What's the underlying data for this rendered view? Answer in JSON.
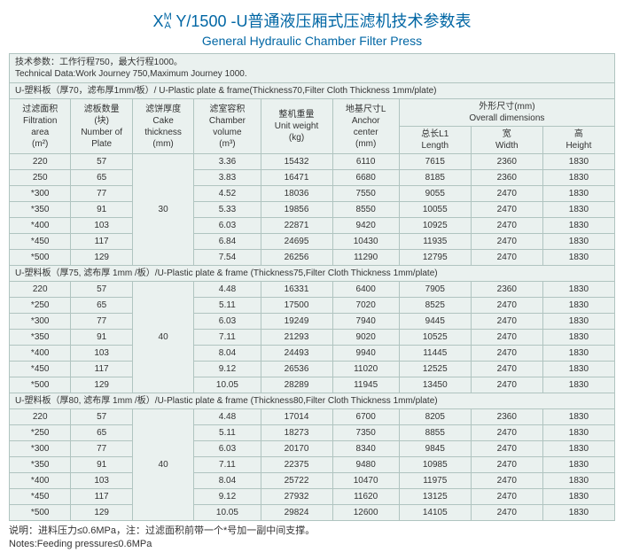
{
  "title": {
    "xs": "X",
    "stack_top": "M",
    "stack_bottom": "A",
    "rest": " Y/1500 -U普通液压厢式压滤机技术参数表"
  },
  "subtitle": "General Hydraulic Chamber Filter Press",
  "tech_data": {
    "cn": "技术参数：工作行程750，最大行程1000。",
    "en": "Technical Data:Work Journey 750,Maximum Journey 1000."
  },
  "section_headers": {
    "s70": "U-塑料板（厚70，滤布厚1mm/板）/ U-Plastic plate & frame(Thickness70,Filter Cloth Thickness 1mm/plate)",
    "s75": "U-塑料板（厚75,  滤布厚 1mm /板）/U-Plastic plate & frame (Thickness75,Filter Cloth Thickness 1mm/plate)",
    "s80": "U-塑料板（厚80,  滤布厚 1mm /板）/U-Plastic plate & frame (Thickness80,Filter Cloth Thickness 1mm/plate)"
  },
  "headers": {
    "area_cn": "过滤面积",
    "area_en": "Filtration area",
    "area_unit": "(m²)",
    "plates_cn": "滤板数量",
    "plates_mid": "(块)",
    "plates_en": "Number of",
    "plates_en2": "Plate",
    "cake_cn": "滤饼厚度",
    "cake_en": "Cake",
    "cake_en2": "thickness",
    "cake_unit": "(mm)",
    "vol_cn": "滤室容积",
    "vol_en": "Chamber",
    "vol_en2": "volume",
    "vol_unit": "(m³)",
    "weight_cn": "整机重量",
    "weight_en": "Unit weight",
    "weight_unit": "(kg)",
    "anchor_cn": "地基尺寸L",
    "anchor_en": "Anchor",
    "anchor_en2": "center",
    "anchor_unit": "(mm)",
    "dims_cn": "外形尺寸(mm)",
    "dims_en": "Overall dimensions",
    "len_cn": "总长L1",
    "len_en": "Length",
    "wid_cn": "宽",
    "wid_en": "Width",
    "hei_cn": "高",
    "hei_en": "Height"
  },
  "groups": [
    {
      "cake": "30",
      "rows": [
        [
          "220",
          "57",
          "3.36",
          "15432",
          "6110",
          "7615",
          "2360",
          "1830"
        ],
        [
          "250",
          "65",
          "3.83",
          "16471",
          "6680",
          "8185",
          "2360",
          "1830"
        ],
        [
          "*300",
          "77",
          "4.52",
          "18036",
          "7550",
          "9055",
          "2470",
          "1830"
        ],
        [
          "*350",
          "91",
          "5.33",
          "19856",
          "8550",
          "10055",
          "2470",
          "1830"
        ],
        [
          "*400",
          "103",
          "6.03",
          "22871",
          "9420",
          "10925",
          "2470",
          "1830"
        ],
        [
          "*450",
          "117",
          "6.84",
          "24695",
          "10430",
          "11935",
          "2470",
          "1830"
        ],
        [
          "*500",
          "129",
          "7.54",
          "26256",
          "11290",
          "12795",
          "2470",
          "1830"
        ]
      ]
    },
    {
      "cake": "40",
      "rows": [
        [
          "220",
          "57",
          "4.48",
          "16331",
          "6400",
          "7905",
          "2360",
          "1830"
        ],
        [
          "*250",
          "65",
          "5.11",
          "17500",
          "7020",
          "8525",
          "2470",
          "1830"
        ],
        [
          "*300",
          "77",
          "6.03",
          "19249",
          "7940",
          "9445",
          "2470",
          "1830"
        ],
        [
          "*350",
          "91",
          "7.11",
          "21293",
          "9020",
          "10525",
          "2470",
          "1830"
        ],
        [
          "*400",
          "103",
          "8.04",
          "24493",
          "9940",
          "11445",
          "2470",
          "1830"
        ],
        [
          "*450",
          "117",
          "9.12",
          "26536",
          "11020",
          "12525",
          "2470",
          "1830"
        ],
        [
          "*500",
          "129",
          "10.05",
          "28289",
          "11945",
          "13450",
          "2470",
          "1830"
        ]
      ]
    },
    {
      "cake": "40",
      "rows": [
        [
          "220",
          "57",
          "4.48",
          "17014",
          "6700",
          "8205",
          "2360",
          "1830"
        ],
        [
          "*250",
          "65",
          "5.11",
          "18273",
          "7350",
          "8855",
          "2470",
          "1830"
        ],
        [
          "*300",
          "77",
          "6.03",
          "20170",
          "8340",
          "9845",
          "2470",
          "1830"
        ],
        [
          "*350",
          "91",
          "7.11",
          "22375",
          "9480",
          "10985",
          "2470",
          "1830"
        ],
        [
          "*400",
          "103",
          "8.04",
          "25722",
          "10470",
          "11975",
          "2470",
          "1830"
        ],
        [
          "*450",
          "117",
          "9.12",
          "27932",
          "11620",
          "13125",
          "2470",
          "1830"
        ],
        [
          "*500",
          "129",
          "10.05",
          "29824",
          "12600",
          "14105",
          "2470",
          "1830"
        ]
      ]
    }
  ],
  "notes": {
    "cn": "说明：进料压力≤0.6MPa，注：过滤面积前带一个*号加一副中间支撑。",
    "en": "Notes:Feeding pressure≤0.6MPa"
  }
}
